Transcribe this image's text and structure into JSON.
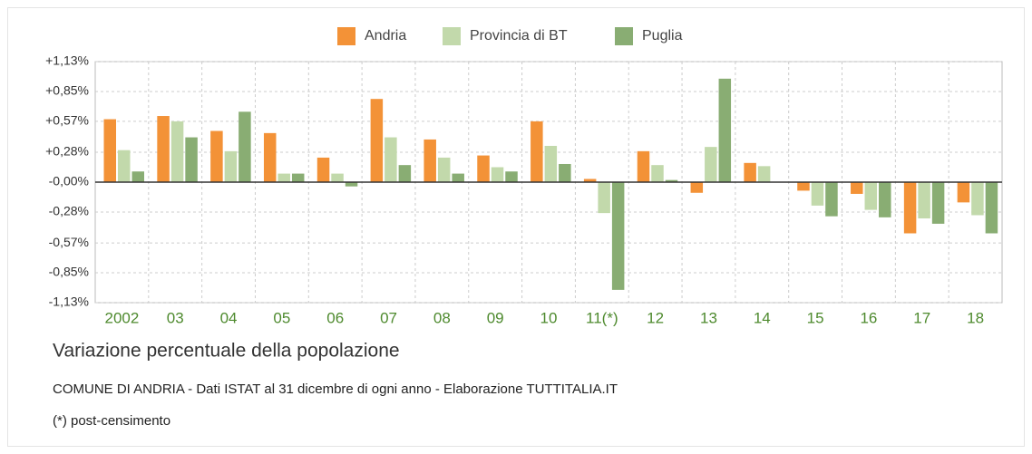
{
  "chart_data": {
    "type": "bar",
    "title": "Variazione percentuale della popolazione",
    "subtitle": "COMUNE DI ANDRIA - Dati ISTAT al 31 dicembre di ogni anno - Elaborazione TUTTITALIA.IT",
    "note": "(*) post-censimento",
    "categories": [
      "2002",
      "03",
      "04",
      "05",
      "06",
      "07",
      "08",
      "09",
      "10",
      "11(*)",
      "12",
      "13",
      "14",
      "15",
      "16",
      "17",
      "18"
    ],
    "series": [
      {
        "name": "Andria",
        "color": "#f39237",
        "values": [
          0.59,
          0.62,
          0.48,
          0.46,
          0.23,
          0.78,
          0.4,
          0.25,
          0.57,
          0.03,
          0.29,
          -0.1,
          0.18,
          -0.08,
          -0.11,
          -0.48,
          -0.19
        ]
      },
      {
        "name": "Provincia di BT",
        "color": "#c2d9ab",
        "values": [
          0.3,
          0.57,
          0.29,
          0.08,
          0.08,
          0.42,
          0.23,
          0.14,
          0.34,
          -0.29,
          0.16,
          0.33,
          0.15,
          -0.22,
          -0.26,
          -0.34,
          -0.31
        ]
      },
      {
        "name": "Puglia",
        "color": "#89ad73",
        "values": [
          0.1,
          0.42,
          0.66,
          0.08,
          -0.04,
          0.16,
          0.08,
          0.1,
          0.17,
          -1.01,
          0.02,
          0.97,
          0.0,
          -0.32,
          -0.33,
          -0.39,
          -0.48
        ]
      }
    ],
    "ylim": [
      -1.13,
      1.13
    ],
    "yticks": [
      {
        "value": 1.13,
        "label": "+1,13%"
      },
      {
        "value": 0.85,
        "label": "+0,85%"
      },
      {
        "value": 0.57,
        "label": "+0,57%"
      },
      {
        "value": 0.28,
        "label": "+0,28%"
      },
      {
        "value": 0,
        "label": "-0,00%"
      },
      {
        "value": -0.28,
        "label": "-0,28%"
      },
      {
        "value": -0.57,
        "label": "-0,57%"
      },
      {
        "value": -0.85,
        "label": "-0,85%"
      },
      {
        "value": -1.13,
        "label": "-1,13%"
      }
    ],
    "grid": true,
    "legend": "top"
  }
}
